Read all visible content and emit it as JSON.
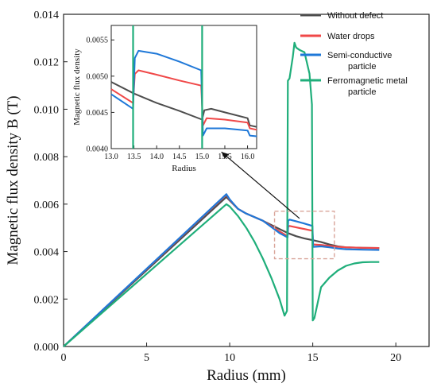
{
  "chart_data": [
    {
      "type": "line",
      "xlabel": "Radius (mm)",
      "ylabel": "Magnetic flux density B (T)",
      "xlim": [
        0,
        22
      ],
      "ylim": [
        0,
        0.014
      ],
      "xticks": [
        0,
        5,
        10,
        15,
        20
      ],
      "yticks": [
        0.0,
        0.002,
        0.004,
        0.006,
        0.008,
        0.01,
        0.012,
        0.014
      ],
      "ytick_labels": [
        "0.000",
        "0.002",
        "0.004",
        "0.006",
        "0.008",
        "0.010",
        "0.012",
        "0.014"
      ],
      "legend_position": "top-right",
      "grid": false,
      "series": [
        {
          "name": "Without defect",
          "color": "#4d4d4d",
          "points": [
            [
              0,
              0
            ],
            [
              9.8,
              0.0063
            ],
            [
              10,
              0.00615
            ],
            [
              10.5,
              0.0058
            ],
            [
              11,
              0.0056
            ],
            [
              12,
              0.0053
            ],
            [
              13,
              0.00495
            ],
            [
              13.5,
              0.00478
            ],
            [
              14,
              0.00465
            ],
            [
              14.5,
              0.00455
            ],
            [
              15,
              0.00448
            ],
            [
              15.5,
              0.0044
            ],
            [
              16,
              0.0043
            ],
            [
              16.5,
              0.00422
            ],
            [
              17,
              0.00418
            ],
            [
              18,
              0.00416
            ],
            [
              19,
              0.00415
            ]
          ]
        },
        {
          "name": "Water drops",
          "color": "#f04848",
          "points": [
            [
              0,
              0
            ],
            [
              9.8,
              0.0064
            ],
            [
              10,
              0.00618
            ],
            [
              10.5,
              0.0058
            ],
            [
              11,
              0.0056
            ],
            [
              12,
              0.0053
            ],
            [
              13,
              0.00485
            ],
            [
              13.48,
              0.00465
            ],
            [
              13.52,
              0.00505
            ],
            [
              13.6,
              0.00508
            ],
            [
              14,
              0.00502
            ],
            [
              14.5,
              0.00495
            ],
            [
              14.98,
              0.00488
            ],
            [
              15.02,
              0.0043
            ],
            [
              15.5,
              0.00428
            ],
            [
              16,
              0.00424
            ],
            [
              16.5,
              0.0042
            ],
            [
              17,
              0.00418
            ],
            [
              18,
              0.00416
            ],
            [
              19,
              0.00415
            ]
          ]
        },
        {
          "name": "Semi-conductive particle",
          "color": "#1f78d8",
          "points": [
            [
              0,
              0
            ],
            [
              9.8,
              0.00642
            ],
            [
              10,
              0.0062
            ],
            [
              10.5,
              0.0058
            ],
            [
              11,
              0.0056
            ],
            [
              12,
              0.0053
            ],
            [
              13,
              0.00478
            ],
            [
              13.48,
              0.0046
            ],
            [
              13.52,
              0.0053
            ],
            [
              13.6,
              0.00535
            ],
            [
              14,
              0.00528
            ],
            [
              14.5,
              0.00518
            ],
            [
              14.98,
              0.00508
            ],
            [
              15.02,
              0.0042
            ],
            [
              15.5,
              0.00422
            ],
            [
              16,
              0.00418
            ],
            [
              16.5,
              0.00413
            ],
            [
              17,
              0.0041
            ],
            [
              18,
              0.00408
            ],
            [
              19,
              0.00407
            ]
          ]
        },
        {
          "name": "Ferromagnetic metal particle",
          "color": "#1fae7a",
          "points": [
            [
              0,
              0
            ],
            [
              9.8,
              0.006
            ],
            [
              10,
              0.0059
            ],
            [
              10.5,
              0.0055
            ],
            [
              11,
              0.005
            ],
            [
              11.5,
              0.0044
            ],
            [
              12,
              0.0037
            ],
            [
              12.5,
              0.0029
            ],
            [
              13,
              0.002
            ],
            [
              13.3,
              0.0013
            ],
            [
              13.45,
              0.0015
            ],
            [
              13.5,
              0.0112
            ],
            [
              13.6,
              0.0113
            ],
            [
              13.8,
              0.0122
            ],
            [
              13.9,
              0.0128
            ],
            [
              14,
              0.0126
            ],
            [
              14.2,
              0.0125
            ],
            [
              14.5,
              0.0124
            ],
            [
              14.8,
              0.0115
            ],
            [
              14.95,
              0.0102
            ],
            [
              15,
              0.0011
            ],
            [
              15.1,
              0.0012
            ],
            [
              15.5,
              0.0025
            ],
            [
              16,
              0.0029
            ],
            [
              16.5,
              0.0032
            ],
            [
              17,
              0.0034
            ],
            [
              17.5,
              0.0035
            ],
            [
              18,
              0.00355
            ],
            [
              18.5,
              0.00356
            ],
            [
              19,
              0.00356
            ]
          ]
        }
      ],
      "annotations": [
        {
          "type": "dashed-box",
          "xrange": [
            12.7,
            16.3
          ],
          "yrange": [
            0.0037,
            0.0057
          ]
        },
        {
          "type": "arrow",
          "from": [
            14.2,
            0.0054
          ],
          "to": [
            9.5,
            0.0082
          ]
        }
      ]
    },
    {
      "type": "line",
      "role": "inset",
      "xlabel": "Radius",
      "ylabel": "Magnetic flux density",
      "xlim": [
        13.0,
        16.2
      ],
      "ylim": [
        0.004,
        0.0057
      ],
      "xticks": [
        13.0,
        13.5,
        14.0,
        14.5,
        15.0,
        15.5,
        16.0
      ],
      "xtick_labels": [
        "13.0",
        "13.5",
        "14.0",
        "14.5",
        "15.0",
        "15.5",
        "16.0"
      ],
      "yticks": [
        0.004,
        0.0045,
        0.005,
        0.0055
      ],
      "ytick_labels": [
        "0.0040",
        "0.0045",
        "0.0050",
        "0.0055"
      ],
      "series": [
        {
          "name": "Without defect",
          "color": "#4d4d4d",
          "points": [
            [
              13.0,
              0.00492
            ],
            [
              13.5,
              0.00476
            ],
            [
              14.0,
              0.00463
            ],
            [
              14.5,
              0.00452
            ],
            [
              15.0,
              0.0044
            ],
            [
              15.05,
              0.00453
            ],
            [
              15.2,
              0.00455
            ],
            [
              15.5,
              0.0045
            ],
            [
              16.0,
              0.00442
            ],
            [
              16.05,
              0.00432
            ],
            [
              16.2,
              0.0043
            ]
          ]
        },
        {
          "name": "Water drops",
          "color": "#f04848",
          "points": [
            [
              13.0,
              0.00482
            ],
            [
              13.48,
              0.00463
            ],
            [
              13.52,
              0.00503
            ],
            [
              13.6,
              0.00508
            ],
            [
              14.0,
              0.00502
            ],
            [
              14.5,
              0.00494
            ],
            [
              14.98,
              0.00487
            ],
            [
              15.02,
              0.00432
            ],
            [
              15.1,
              0.00442
            ],
            [
              15.5,
              0.0044
            ],
            [
              16.0,
              0.00436
            ],
            [
              16.05,
              0.00428
            ],
            [
              16.2,
              0.00426
            ]
          ]
        },
        {
          "name": "Semi-conductive particle",
          "color": "#1f78d8",
          "points": [
            [
              13.0,
              0.00475
            ],
            [
              13.48,
              0.00455
            ],
            [
              13.52,
              0.00525
            ],
            [
              13.6,
              0.00535
            ],
            [
              14.0,
              0.00531
            ],
            [
              14.5,
              0.0052
            ],
            [
              14.98,
              0.00508
            ],
            [
              15.02,
              0.00418
            ],
            [
              15.1,
              0.00428
            ],
            [
              15.5,
              0.00428
            ],
            [
              16.0,
              0.00425
            ],
            [
              16.05,
              0.00418
            ],
            [
              16.2,
              0.00417
            ]
          ]
        },
        {
          "name": "Ferromagnetic metal particle",
          "color": "#1fae7a",
          "points": [
            [
              13.48,
              0.004
            ],
            [
              13.48,
              0.0057
            ],
            [
              15.0,
              0.0057
            ],
            [
              15.0,
              0.004
            ]
          ],
          "segments": [
            [
              [
                13.48,
                0.004
              ],
              [
                13.48,
                0.0057
              ]
            ],
            [
              [
                15.0,
                0.0057
              ],
              [
                15.0,
                0.004
              ]
            ]
          ]
        }
      ]
    }
  ],
  "legend": {
    "items": [
      {
        "label_lines": [
          "Without defect"
        ],
        "color": "#4d4d4d"
      },
      {
        "label_lines": [
          "Water drops"
        ],
        "color": "#f04848"
      },
      {
        "label_lines": [
          "Semi-conductive",
          "particle"
        ],
        "color": "#1f78d8"
      },
      {
        "label_lines": [
          "Ferromagnetic metal",
          "particle"
        ],
        "color": "#1fae7a"
      }
    ]
  }
}
